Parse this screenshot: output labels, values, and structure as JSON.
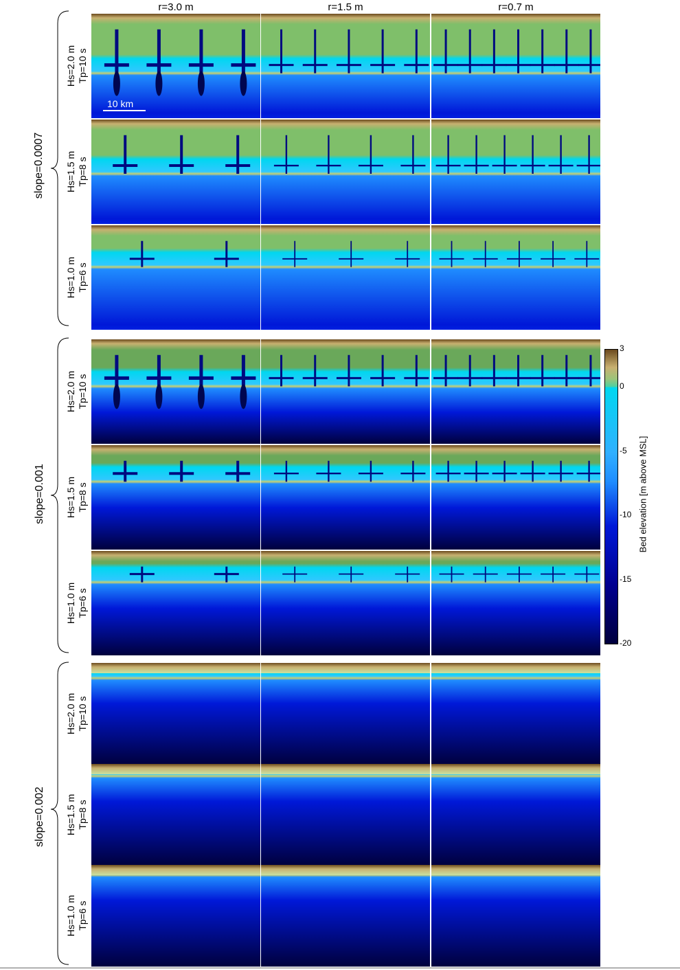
{
  "columns": [
    "r=3.0 m",
    "r=1.5 m",
    "r=0.7 m"
  ],
  "groups": [
    {
      "label": "slope=0.0007",
      "rows": [
        {
          "hs": "Hs=2.0 m",
          "tp": "Tp=10 s"
        },
        {
          "hs": "Hs=1.5 m",
          "tp": "Tp=8 s"
        },
        {
          "hs": "Hs=1.0 m",
          "tp": "Tp=6 s"
        }
      ]
    },
    {
      "label": "slope=0.001",
      "rows": [
        {
          "hs": "Hs=2.0 m",
          "tp": "Tp=10 s"
        },
        {
          "hs": "Hs=1.5 m",
          "tp": "Tp=8 s"
        },
        {
          "hs": "Hs=1.0 m",
          "tp": "Tp=6 s"
        }
      ]
    },
    {
      "label": "slope=0.002",
      "rows": [
        {
          "hs": "Hs=2.0 m",
          "tp": "Tp=10 s"
        },
        {
          "hs": "Hs=1.5 m",
          "tp": "Tp=8 s"
        },
        {
          "hs": "Hs=1.0 m",
          "tp": "Tp=6 s"
        }
      ]
    }
  ],
  "scalebar": "10 km",
  "colorbar": {
    "title": "Bed elevation [m above MSL]",
    "ticks": [
      "3",
      "0",
      "-5",
      "-10",
      "-15",
      "-20"
    ],
    "colors": {
      "top": "#6b4a1e",
      "land": "#9bc47a",
      "shore": "#00d7f0",
      "shallow": "#1f8cff",
      "mid": "#0018d8",
      "deep": "#00003d"
    }
  }
}
